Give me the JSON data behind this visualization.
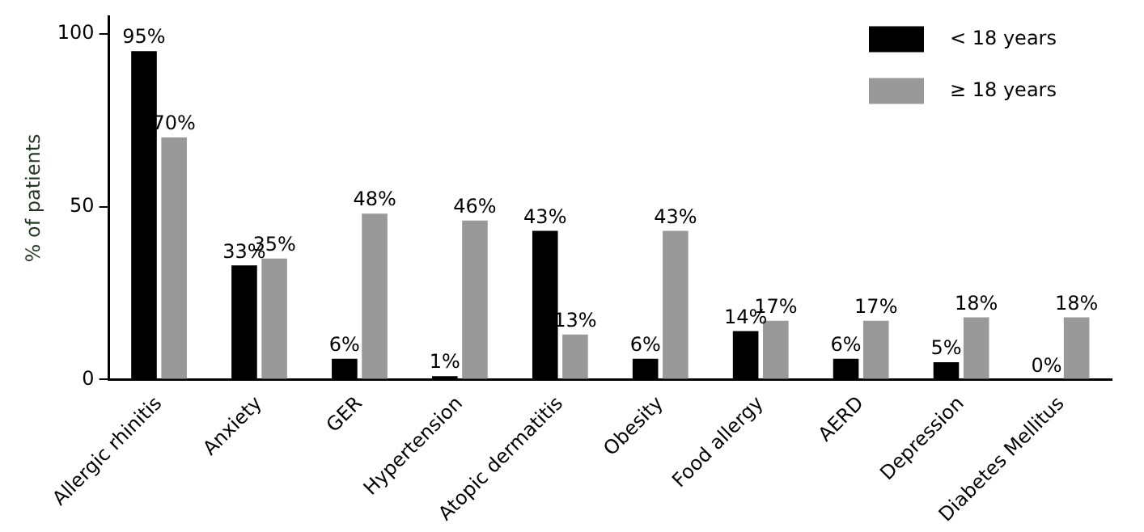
{
  "chart_data": {
    "type": "bar",
    "ylabel": "% of patients",
    "categories": [
      "Allergic rhinitis",
      "Anxiety",
      "GER",
      "Hypertension",
      "Atopic dermatitis",
      "Obesity",
      "Food allergy",
      "AERD",
      "Depression",
      "Diabetes Mellitus"
    ],
    "series": [
      {
        "name": "< 18 years",
        "color": "#000000",
        "values": [
          95,
          33,
          6,
          1,
          43,
          6,
          14,
          6,
          5,
          0
        ],
        "value_labels": [
          "95%",
          "33%",
          "6%",
          "1%",
          "43%",
          "6%",
          "14%",
          "6%",
          "5%",
          "0%"
        ]
      },
      {
        "name": "≥ 18 years",
        "color": "#999999",
        "values": [
          70,
          35,
          48,
          46,
          13,
          43,
          17,
          17,
          18,
          18
        ],
        "value_labels": [
          "70%",
          "35%",
          "48%",
          "46%",
          "13%",
          "43%",
          "17%",
          "17%",
          "18%",
          "18%"
        ]
      }
    ],
    "ylim": [
      0,
      105
    ],
    "yticks": [
      0,
      50,
      100
    ],
    "grid": false,
    "legend": "top right"
  }
}
